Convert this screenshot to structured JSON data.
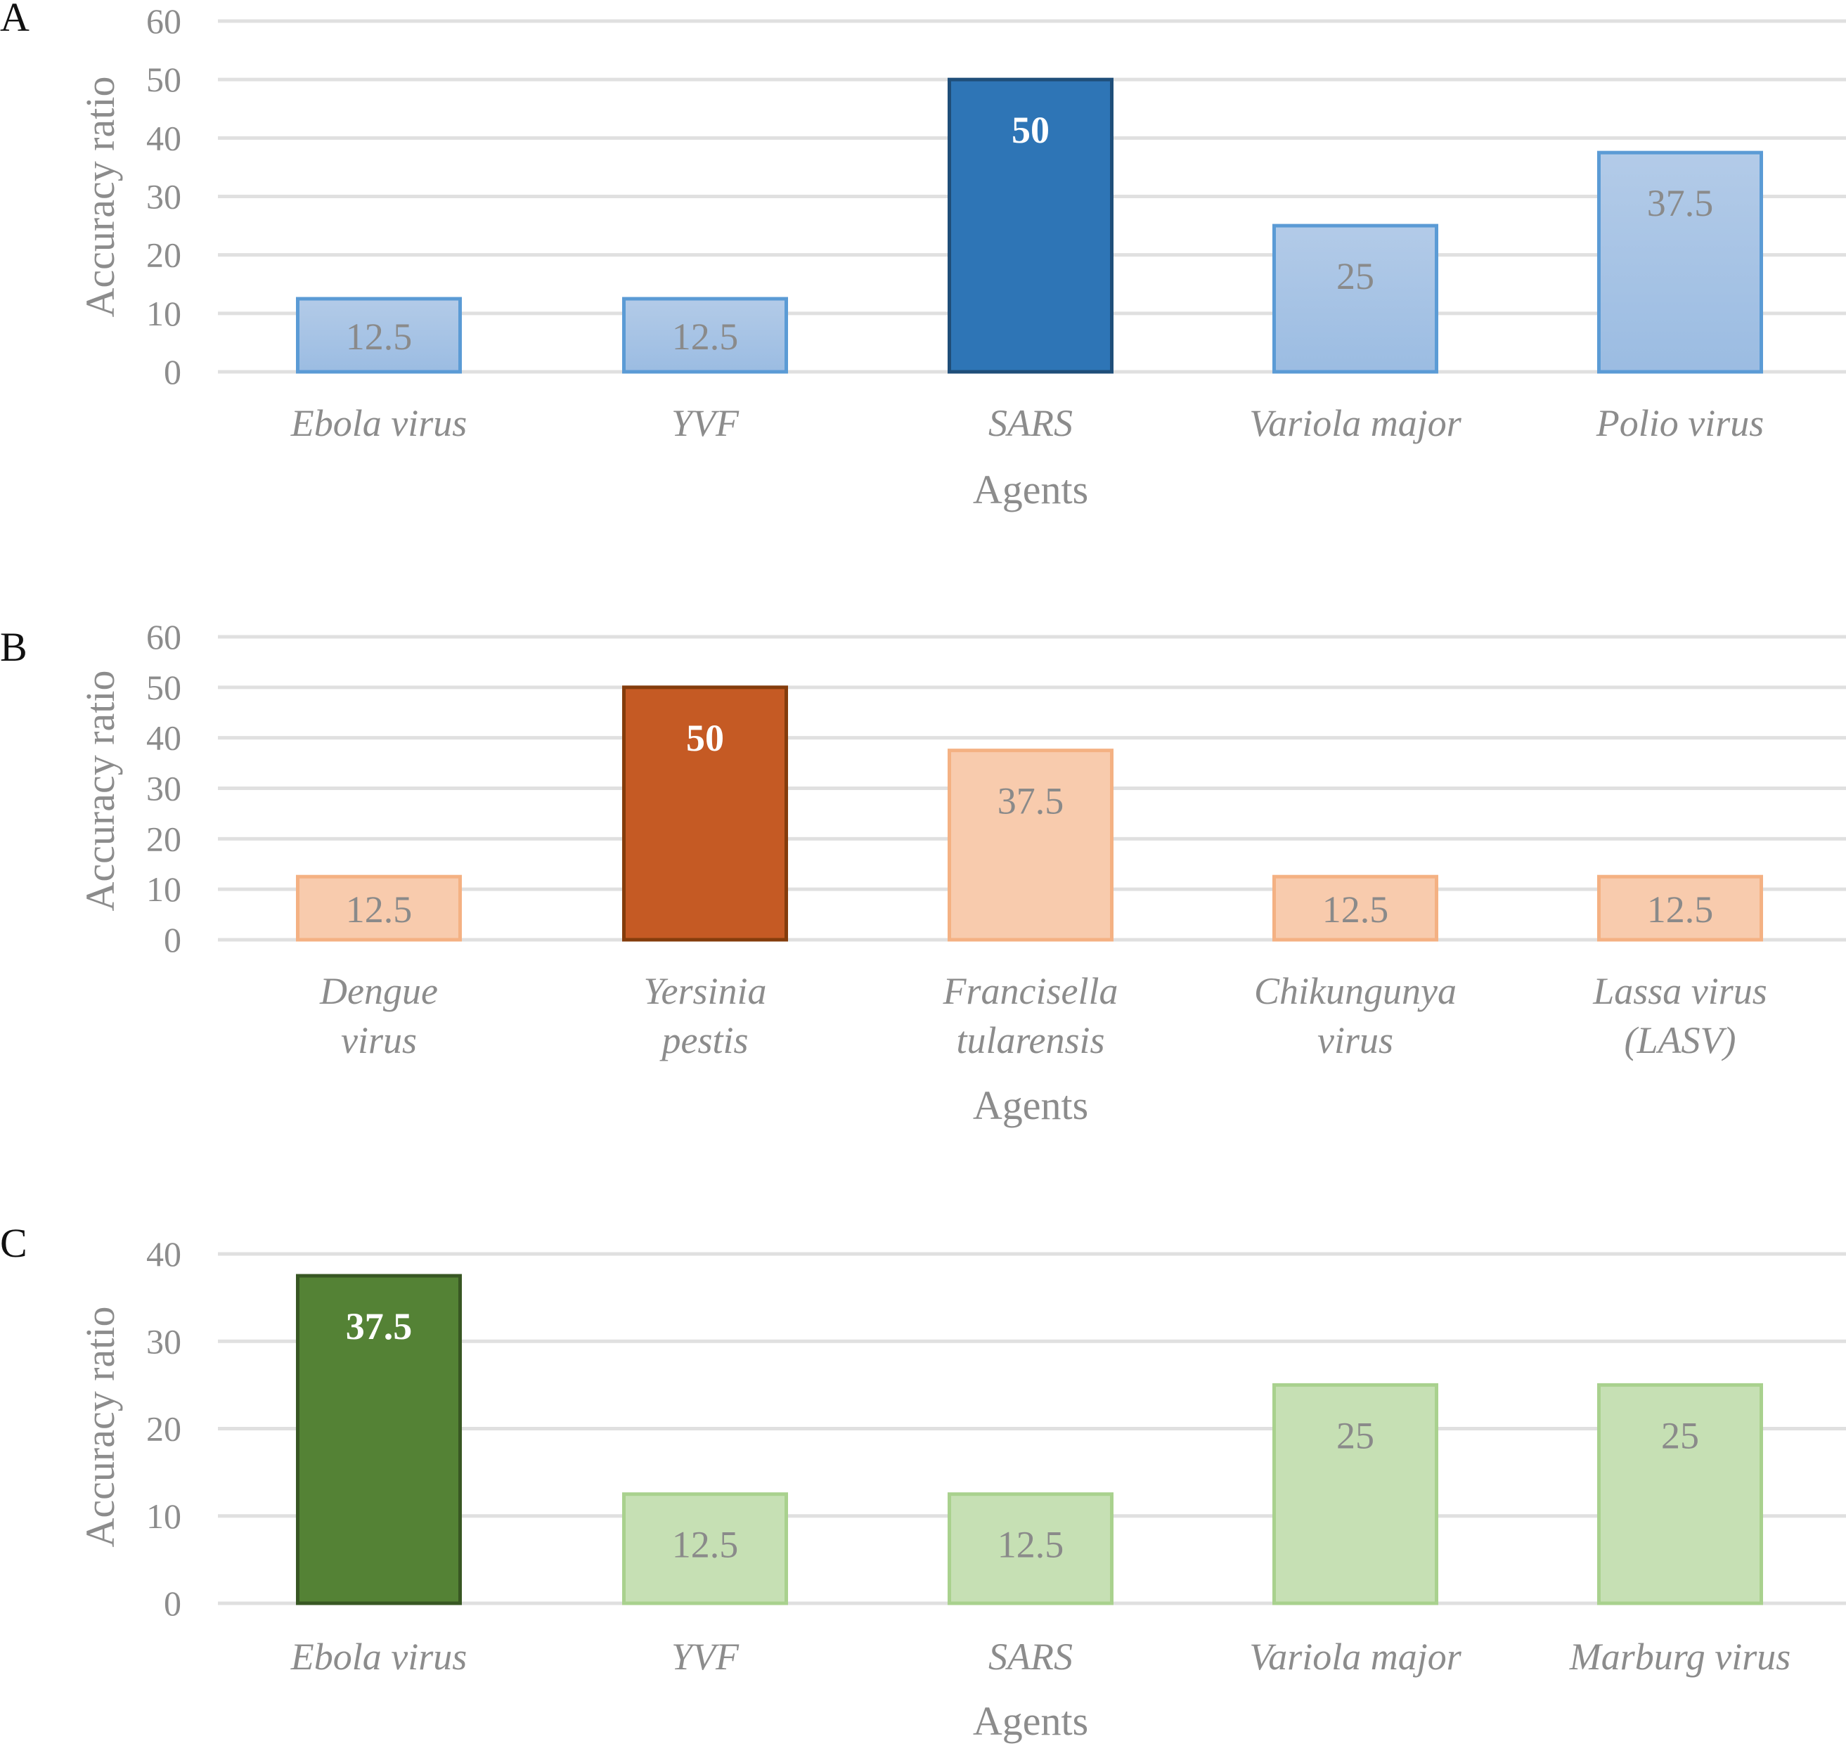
{
  "chart_data": [
    {
      "panel": "A",
      "type": "bar",
      "title": "",
      "xlabel": "Agents",
      "ylabel": "Accuracy ratio",
      "ylim": [
        0,
        60
      ],
      "yticks": [
        "0",
        "10",
        "20",
        "30",
        "40",
        "50",
        "60"
      ],
      "grid": true,
      "categories": [
        [
          "Ebola virus"
        ],
        [
          "YVF"
        ],
        [
          "SARS"
        ],
        [
          "Variola major"
        ],
        [
          "Polio virus"
        ]
      ],
      "values": [
        12.5,
        12.5,
        50,
        25,
        37.5
      ],
      "data_labels": [
        "12.5",
        "12.5",
        "50",
        "25",
        "37.5"
      ],
      "highlight_index": 2,
      "colors": {
        "normal_fill_top": "#b3cbe8",
        "normal_fill_bottom": "#9bbce2",
        "normal_stroke": "#5b9bd5",
        "highlight_fill": "#2e75b6",
        "highlight_stroke": "#1f4e79"
      }
    },
    {
      "panel": "B",
      "type": "bar",
      "title": "",
      "xlabel": "Agents",
      "ylabel": "Accuracy ratio",
      "ylim": [
        0,
        60
      ],
      "yticks": [
        "0",
        "10",
        "20",
        "30",
        "40",
        "50",
        "60"
      ],
      "grid": true,
      "categories": [
        [
          "Dengue",
          "virus"
        ],
        [
          "Yersinia",
          "pestis"
        ],
        [
          "Francisella",
          "tularensis"
        ],
        [
          "Chikungunya",
          "virus"
        ],
        [
          "Lassa virus",
          "(LASV)"
        ]
      ],
      "values": [
        12.5,
        50,
        37.5,
        12.5,
        12.5
      ],
      "data_labels": [
        "12.5",
        "50",
        "37.5",
        "12.5",
        "12.5"
      ],
      "highlight_index": 1,
      "colors": {
        "normal_fill_top": "#f8cbad",
        "normal_fill_bottom": "#f8cbad",
        "normal_stroke": "#f4b183",
        "highlight_fill": "#c55a24",
        "highlight_stroke": "#843c0c"
      }
    },
    {
      "panel": "C",
      "type": "bar",
      "title": "",
      "xlabel": "Agents",
      "ylabel": "Accuracy ratio",
      "ylim": [
        0,
        40
      ],
      "yticks": [
        "0",
        "10",
        "20",
        "30",
        "40"
      ],
      "grid": true,
      "categories": [
        [
          "Ebola virus"
        ],
        [
          "YVF"
        ],
        [
          "SARS"
        ],
        [
          "Variola major"
        ],
        [
          "Marburg virus"
        ]
      ],
      "values": [
        37.5,
        12.5,
        12.5,
        25,
        25
      ],
      "data_labels": [
        "37.5",
        "12.5",
        "12.5",
        "25",
        "25"
      ],
      "highlight_index": 0,
      "colors": {
        "normal_fill_top": "#c6e0b4",
        "normal_fill_bottom": "#c6e0b4",
        "normal_stroke": "#a9d18e",
        "highlight_fill": "#548235",
        "highlight_stroke": "#385723"
      }
    }
  ]
}
